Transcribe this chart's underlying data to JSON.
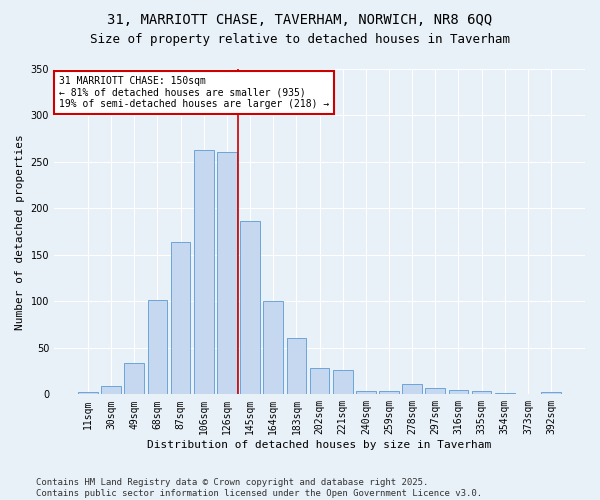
{
  "title": "31, MARRIOTT CHASE, TAVERHAM, NORWICH, NR8 6QQ",
  "subtitle": "Size of property relative to detached houses in Taverham",
  "xlabel": "Distribution of detached houses by size in Taverham",
  "ylabel": "Number of detached properties",
  "bar_color": "#c5d8f0",
  "bar_edge_color": "#5b9bd5",
  "background_color": "#e8f0f8",
  "categories": [
    "11sqm",
    "30sqm",
    "49sqm",
    "68sqm",
    "87sqm",
    "106sqm",
    "126sqm",
    "145sqm",
    "164sqm",
    "183sqm",
    "202sqm",
    "221sqm",
    "240sqm",
    "259sqm",
    "278sqm",
    "297sqm",
    "316sqm",
    "335sqm",
    "354sqm",
    "373sqm",
    "392sqm"
  ],
  "values": [
    2,
    9,
    34,
    101,
    164,
    263,
    261,
    187,
    100,
    61,
    28,
    26,
    4,
    4,
    11,
    7,
    5,
    4,
    1,
    0,
    2
  ],
  "vline_index": 7,
  "vline_color": "#cc0000",
  "annotation_text": "31 MARRIOTT CHASE: 150sqm\n← 81% of detached houses are smaller (935)\n19% of semi-detached houses are larger (218) →",
  "annotation_box_color": "#ffffff",
  "annotation_edge_color": "#cc0000",
  "ylim": [
    0,
    350
  ],
  "yticks": [
    0,
    50,
    100,
    150,
    200,
    250,
    300,
    350
  ],
  "footer": "Contains HM Land Registry data © Crown copyright and database right 2025.\nContains public sector information licensed under the Open Government Licence v3.0.",
  "grid_color": "#ffffff",
  "title_fontsize": 10,
  "subtitle_fontsize": 9,
  "tick_fontsize": 7,
  "ylabel_fontsize": 8,
  "xlabel_fontsize": 8,
  "footer_fontsize": 6.5
}
